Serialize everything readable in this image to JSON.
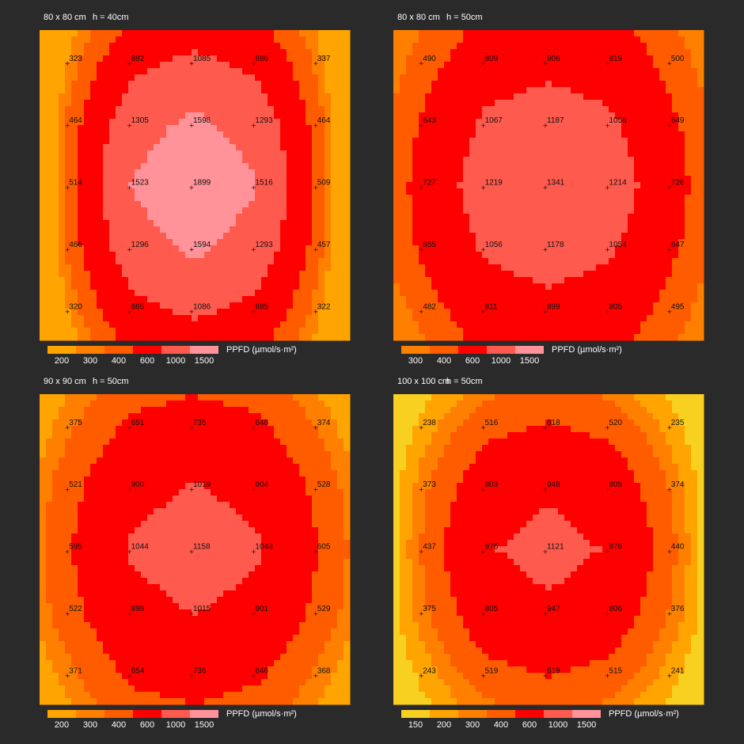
{
  "chart_data": [
    {
      "type": "heatmap",
      "title": "80 x 80 cm",
      "subtitle": "h = 40cm",
      "values": [
        [
          323,
          882,
          1085,
          886,
          337
        ],
        [
          464,
          1305,
          1598,
          1293,
          464
        ],
        [
          514,
          1523,
          1899,
          1516,
          509
        ],
        [
          466,
          1296,
          1594,
          1293,
          457
        ],
        [
          320,
          885,
          1086,
          885,
          322
        ]
      ],
      "legend": {
        "label": "PPFD (µmol/s·m²)",
        "levels": [
          200,
          300,
          400,
          600,
          1000,
          1500
        ],
        "colors": [
          "#ffa400",
          "#ff8000",
          "#ff5c00",
          "#ff0000",
          "#ff5a4e",
          "#ff9399"
        ]
      }
    },
    {
      "type": "heatmap",
      "title": "80 x 80 cm",
      "subtitle": "h = 50cm",
      "values": [
        [
          490,
          809,
          906,
          819,
          500
        ],
        [
          643,
          1067,
          1187,
          1058,
          649
        ],
        [
          727,
          1219,
          1341,
          1214,
          726
        ],
        [
          655,
          1056,
          1178,
          1054,
          647
        ],
        [
          482,
          811,
          899,
          805,
          495
        ]
      ],
      "legend": {
        "label": "PPFD (µmol/s·m²)",
        "levels": [
          300,
          400,
          600,
          1000,
          1500
        ],
        "colors": [
          "#ff8000",
          "#ff5c00",
          "#ff0000",
          "#ff5a4e",
          "#ff9399"
        ]
      }
    },
    {
      "type": "heatmap",
      "title": "90 x 90 cm",
      "subtitle": "h = 50cm",
      "values": [
        [
          375,
          651,
          735,
          648,
          374
        ],
        [
          521,
          900,
          1019,
          904,
          528
        ],
        [
          595,
          1044,
          1158,
          1048,
          605
        ],
        [
          522,
          898,
          1015,
          901,
          529
        ],
        [
          371,
          654,
          736,
          646,
          368
        ]
      ],
      "legend": {
        "label": "PPFD (µmol/s·m²)",
        "levels": [
          200,
          300,
          400,
          600,
          1000,
          1500
        ],
        "colors": [
          "#ffa400",
          "#ff8000",
          "#ff5c00",
          "#ff0000",
          "#ff5a4e",
          "#ff9399"
        ]
      }
    },
    {
      "type": "heatmap",
      "title": "100 x 100 cm",
      "subtitle": "h = 50cm",
      "values": [
        [
          238,
          516,
          618,
          520,
          235
        ],
        [
          373,
          803,
          948,
          805,
          374
        ],
        [
          437,
          976,
          1121,
          976,
          440
        ],
        [
          375,
          805,
          947,
          806,
          376
        ],
        [
          243,
          519,
          619,
          515,
          241
        ]
      ],
      "legend": {
        "label": "PPFD (µmol/s·m²)",
        "levels": [
          150,
          200,
          300,
          400,
          600,
          1000,
          1500
        ],
        "colors": [
          "#f8d020",
          "#ffa400",
          "#ff8000",
          "#ff5c00",
          "#ff0000",
          "#ff5a4e",
          "#ff9399"
        ]
      }
    }
  ]
}
